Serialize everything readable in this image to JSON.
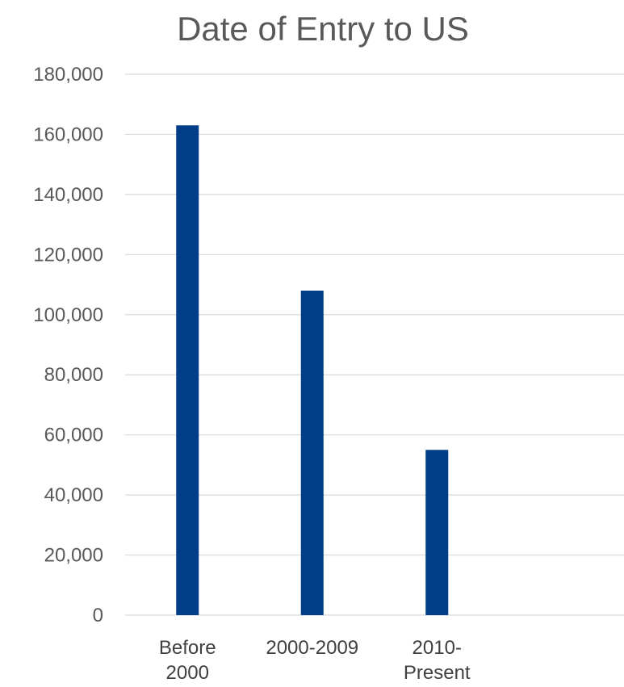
{
  "chart_data": {
    "type": "bar",
    "title": "Date of Entry to US",
    "xlabel": "",
    "ylabel": "",
    "categories": [
      "Before 2000",
      "2000-2009",
      "2010-Present"
    ],
    "category_label_lines": [
      [
        "Before",
        "2000"
      ],
      [
        "2000-2009"
      ],
      [
        "2010-",
        "Present"
      ]
    ],
    "series": [
      {
        "values": [
          163000,
          108000,
          55000
        ]
      }
    ],
    "ylim": [
      0,
      180000
    ],
    "yticks": [
      0,
      20000,
      40000,
      60000,
      80000,
      100000,
      120000,
      140000,
      160000,
      180000
    ],
    "ytick_labels": [
      "0",
      "20,000",
      "40,000",
      "60,000",
      "80,000",
      "100,000",
      "120,000",
      "140,000",
      "160,000",
      "180,000"
    ],
    "grid": true,
    "legend": "none",
    "colors": {
      "bar": "#003F87",
      "grid": "#D9D9D9",
      "text": "#595959"
    }
  }
}
